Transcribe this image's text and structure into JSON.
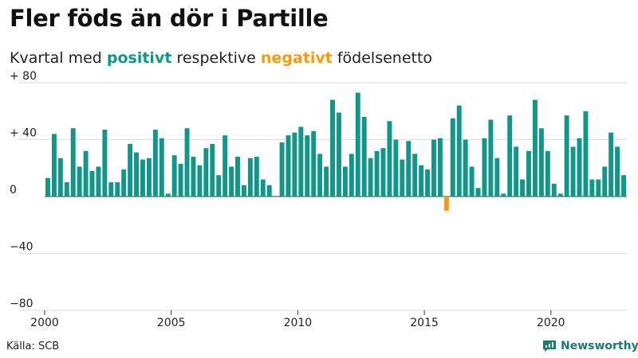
{
  "title": "Fler föds än dör i Partille",
  "subtitle": {
    "pre": "Kvartal med ",
    "positive_word": "positivt",
    "mid": " respektive ",
    "negative_word": "negativt",
    "post": " födelsenetto"
  },
  "source": "Källa: SCB",
  "brand": "Newsworthy",
  "colors": {
    "positive": "#13968a",
    "negative": "#f39c12",
    "grid": "#dddddd",
    "axis": "#333333"
  },
  "chart_data": {
    "type": "bar",
    "title": "Fler föds än dör i Partille",
    "subtitle": "Kvartal med positivt respektive negativt födelsenetto",
    "xlabel": "",
    "ylabel": "",
    "x_start_year": 2000,
    "periods_per_year": 4,
    "ylim": [
      -80,
      80
    ],
    "yticks": [
      {
        "value": 80,
        "label": "+ 80"
      },
      {
        "value": 40,
        "label": "+ 40"
      },
      {
        "value": 0,
        "label": "0"
      },
      {
        "value": -40,
        "label": "−40"
      },
      {
        "value": -80,
        "label": "−80"
      }
    ],
    "xticks": [
      {
        "value": 2000,
        "label": "2000"
      },
      {
        "value": 2005,
        "label": "2005"
      },
      {
        "value": 2010,
        "label": "2010"
      },
      {
        "value": 2015,
        "label": "2015"
      },
      {
        "value": 2020,
        "label": "2020"
      }
    ],
    "values": [
      13,
      44,
      27,
      10,
      48,
      21,
      32,
      18,
      21,
      47,
      10,
      10,
      19,
      37,
      31,
      26,
      27,
      47,
      41,
      2,
      29,
      23,
      48,
      28,
      22,
      34,
      37,
      15,
      43,
      21,
      28,
      8,
      27,
      28,
      12,
      8,
      0,
      38,
      43,
      45,
      49,
      43,
      46,
      30,
      21,
      68,
      59,
      21,
      30,
      73,
      56,
      27,
      32,
      34,
      53,
      40,
      26,
      39,
      30,
      22,
      19,
      40,
      41,
      -10,
      55,
      64,
      40,
      21,
      6,
      41,
      54,
      27,
      2,
      57,
      35,
      12,
      32,
      68,
      48,
      32,
      9,
      2,
      57,
      35,
      41,
      60,
      12,
      12,
      21,
      45,
      35,
      15
    ]
  }
}
